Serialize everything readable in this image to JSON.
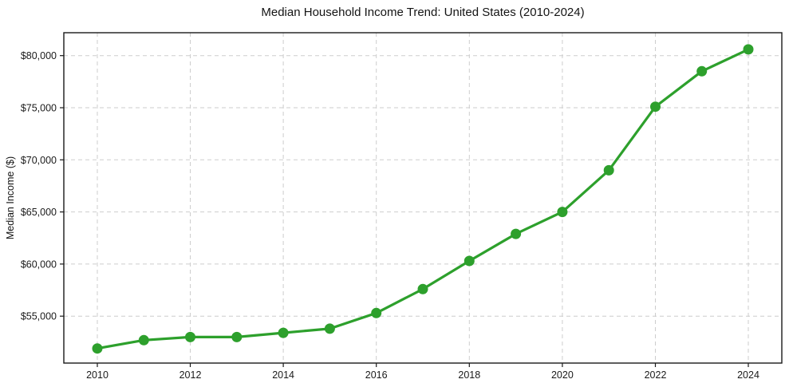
{
  "chart_data": {
    "type": "line",
    "title": "Median Household Income Trend: United States (2010-2024)",
    "xlabel": "",
    "ylabel": "Median Income ($)",
    "x": [
      2010,
      2011,
      2012,
      2013,
      2014,
      2015,
      2016,
      2017,
      2018,
      2019,
      2020,
      2021,
      2022,
      2023,
      2024
    ],
    "values": [
      51900,
      52700,
      53000,
      53000,
      53400,
      53800,
      55300,
      57600,
      60300,
      62900,
      65000,
      69000,
      75100,
      78500,
      80600
    ],
    "xticks": [
      {
        "value": 2010,
        "label": "2010"
      },
      {
        "value": 2012,
        "label": "2012"
      },
      {
        "value": 2014,
        "label": "2014"
      },
      {
        "value": 2016,
        "label": "2016"
      },
      {
        "value": 2018,
        "label": "2018"
      },
      {
        "value": 2020,
        "label": "2020"
      },
      {
        "value": 2022,
        "label": "2022"
      },
      {
        "value": 2024,
        "label": "2024"
      }
    ],
    "yticks": [
      {
        "value": 55000,
        "label": "$55,000"
      },
      {
        "value": 60000,
        "label": "$60,000"
      },
      {
        "value": 65000,
        "label": "$65,000"
      },
      {
        "value": 70000,
        "label": "$70,000"
      },
      {
        "value": 75000,
        "label": "$75,000"
      },
      {
        "value": 80000,
        "label": "$80,000"
      }
    ],
    "xlim": [
      2009.28,
      2024.72
    ],
    "ylim": [
      50500,
      82200
    ],
    "grid": true,
    "grid_style": "dashed",
    "grid_color": "#cdcdcd",
    "legend": "none",
    "line_color": "#2da02c",
    "marker": "circle",
    "marker_color": "#2da02c",
    "axis_color": "#1a1a1a",
    "tick_label_color": "#1a1a1a",
    "background_color": "#ffffff"
  }
}
